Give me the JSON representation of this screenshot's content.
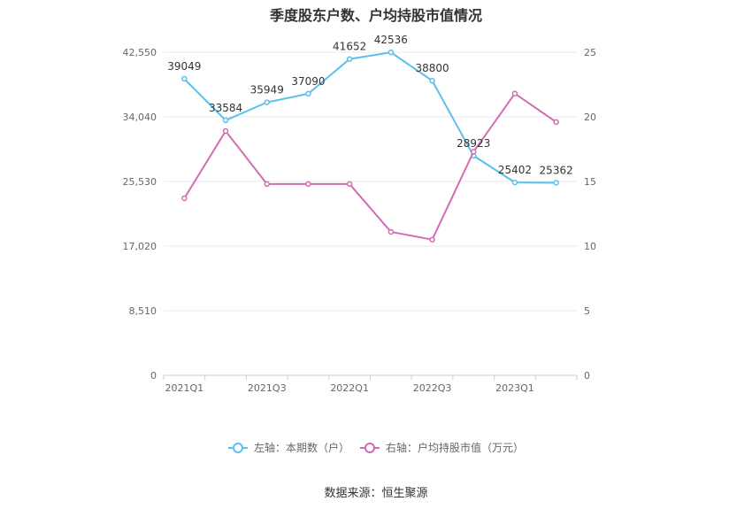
{
  "chart_data": {
    "type": "line",
    "title": "季度股东户数、户均持股市值情况",
    "x": [
      "2021Q1",
      "2021Q2",
      "2021Q3",
      "2021Q4",
      "2022Q1",
      "2022Q2",
      "2022Q3",
      "2022Q4",
      "2023Q1",
      "2023Q2"
    ],
    "x_tick_labels": [
      "2021Q1",
      "2021Q3",
      "2022Q1",
      "2022Q3",
      "2023Q1"
    ],
    "left_axis": {
      "ticks": [
        "0",
        "8,510",
        "17,020",
        "25,530",
        "34,040",
        "42,550"
      ],
      "range": [
        0,
        42550
      ]
    },
    "right_axis": {
      "ticks": [
        "0",
        "5",
        "10",
        "15",
        "20",
        "25"
      ],
      "range": [
        0,
        25
      ]
    },
    "series": [
      {
        "name": "左轴：本期数（户）",
        "axis": "left",
        "color": "#5bc0eb",
        "values": [
          39049,
          33584,
          35949,
          37090,
          41652,
          42536,
          38800,
          28923,
          25402,
          25362
        ]
      },
      {
        "name": "右轴：户均持股市值（万元）",
        "axis": "right",
        "color": "#d46bb0",
        "values": [
          13.7,
          18.9,
          14.8,
          14.8,
          14.8,
          11.1,
          10.5,
          17.3,
          21.8,
          19.6
        ]
      }
    ],
    "legend_position": "bottom",
    "grid": true
  },
  "source": "数据来源：恒生聚源"
}
